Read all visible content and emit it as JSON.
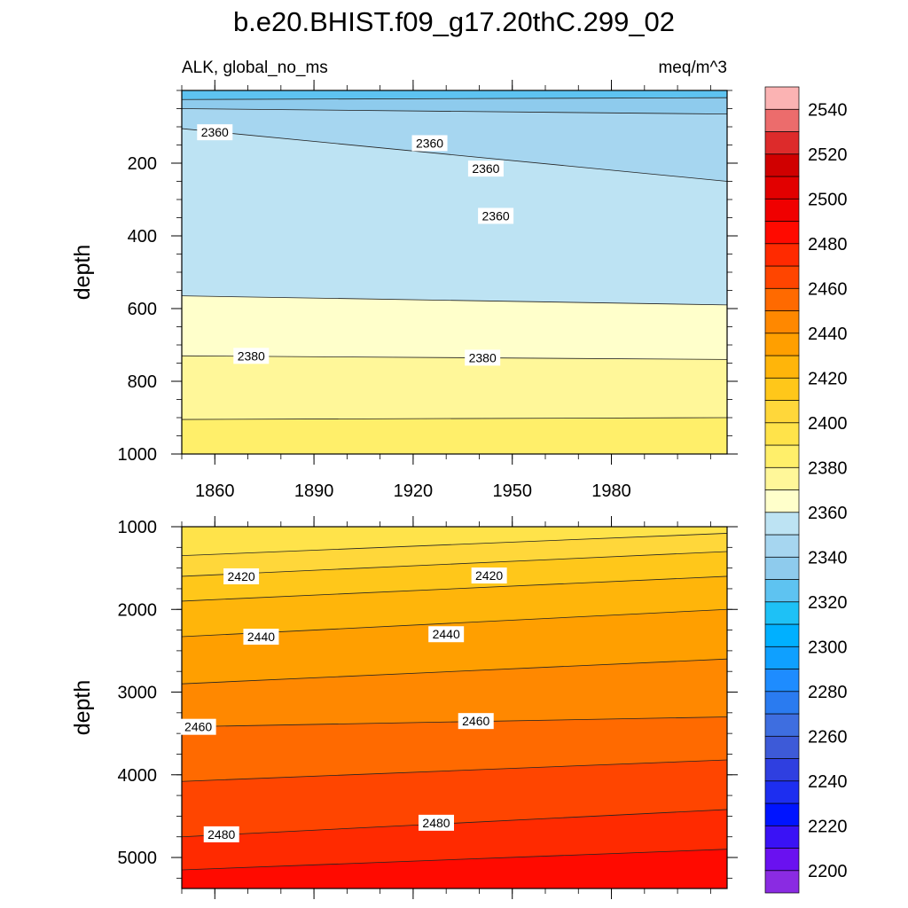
{
  "chart_data": {
    "type": "contour",
    "title": "b.e20.BHIST.f09_g17.20thC.299_02",
    "variable_label": "ALK, global_no_ms",
    "units_label": "meq/m^3",
    "x": {
      "range": [
        1850,
        2015
      ],
      "ticks": [
        1860,
        1890,
        1920,
        1950,
        1980
      ],
      "tick_labels": [
        "1860",
        "1890",
        "1920",
        "1950",
        "1980"
      ]
    },
    "panels": [
      {
        "name": "upper",
        "ylabel": "depth",
        "yrange": [
          0,
          1000
        ],
        "yticks": [
          200,
          400,
          600,
          800,
          1000
        ],
        "ytick_labels": [
          "200",
          "400",
          "600",
          "800",
          "1000"
        ],
        "bands": [
          {
            "level": 2330,
            "color": "#5ec3f1",
            "y0": [
              0,
              0
            ],
            "y1": [
              25,
              20
            ]
          },
          {
            "level": 2340,
            "color": "#8ecbed",
            "y0": [
              25,
              20
            ],
            "y1": [
              50,
              65
            ]
          },
          {
            "level": 2350,
            "color": "#a6d6f0",
            "y0": [
              50,
              65
            ],
            "y1": [
              105,
              250
            ]
          },
          {
            "level": 2360,
            "color": "#bde3f3",
            "y0": [
              105,
              250
            ],
            "y1": [
              565,
              590
            ]
          },
          {
            "level": 2370,
            "color": "#ffffcb",
            "y0": [
              565,
              590
            ],
            "y1": [
              730,
              740
            ]
          },
          {
            "level": 2380,
            "color": "#fff799",
            "y0": [
              730,
              740
            ],
            "y1": [
              905,
              900
            ]
          },
          {
            "level": 2390,
            "color": "#ffef6a",
            "y0": [
              905,
              900
            ],
            "y1": [
              1000,
              1000
            ]
          }
        ],
        "line_labels": [
          {
            "text": "2360",
            "year": 1860,
            "depth": 115
          },
          {
            "text": "2360",
            "year": 1925,
            "depth": 145
          },
          {
            "text": "2360",
            "year": 1942,
            "depth": 215
          },
          {
            "text": "2360",
            "year": 1945,
            "depth": 345
          },
          {
            "text": "2380",
            "year": 1871,
            "depth": 730
          },
          {
            "text": "2380",
            "year": 1941,
            "depth": 735
          }
        ]
      },
      {
        "name": "lower",
        "ylabel": "depth",
        "yrange": [
          1000,
          5375
        ],
        "yticks": [
          1000,
          2000,
          3000,
          4000,
          5000
        ],
        "ytick_labels": [
          "1000",
          "2000",
          "3000",
          "4000",
          "5000"
        ],
        "bands": [
          {
            "level": 2400,
            "color": "#ffe34a",
            "y0": [
              1000,
              1000
            ],
            "y1": [
              1350,
              1080
            ]
          },
          {
            "level": 2410,
            "color": "#ffd73a",
            "y0": [
              1350,
              1080
            ],
            "y1": [
              1600,
              1300
            ]
          },
          {
            "level": 2420,
            "color": "#ffc71a",
            "y0": [
              1600,
              1300
            ],
            "y1": [
              1900,
              1600
            ]
          },
          {
            "level": 2430,
            "color": "#ffb50a",
            "y0": [
              1900,
              1600
            ],
            "y1": [
              2330,
              2000
            ]
          },
          {
            "level": 2440,
            "color": "#ff9f00",
            "y0": [
              2330,
              2000
            ],
            "y1": [
              2900,
              2600
            ]
          },
          {
            "level": 2450,
            "color": "#ff8800",
            "y0": [
              2900,
              2600
            ],
            "y1": [
              3420,
              3300
            ]
          },
          {
            "level": 2460,
            "color": "#ff6a00",
            "y0": [
              3420,
              3300
            ],
            "y1": [
              4080,
              3820
            ]
          },
          {
            "level": 2470,
            "color": "#ff4500",
            "y0": [
              4080,
              3820
            ],
            "y1": [
              4750,
              4420
            ]
          },
          {
            "level": 2480,
            "color": "#ff2a00",
            "y0": [
              4750,
              4420
            ],
            "y1": [
              5150,
              4900
            ]
          },
          {
            "level": 2490,
            "color": "#ff0a00",
            "y0": [
              5150,
              4900
            ],
            "y1": [
              5375,
              5375
            ]
          }
        ],
        "line_labels": [
          {
            "text": "2420",
            "year": 1868,
            "depth": 1600
          },
          {
            "text": "2420",
            "year": 1943,
            "depth": 1590
          },
          {
            "text": "2440",
            "year": 1874,
            "depth": 2330
          },
          {
            "text": "2440",
            "year": 1930,
            "depth": 2300
          },
          {
            "text": "2460",
            "year": 1855,
            "depth": 3420
          },
          {
            "text": "2460",
            "year": 1939,
            "depth": 3350
          },
          {
            "text": "2480",
            "year": 1862,
            "depth": 4720
          },
          {
            "text": "2480",
            "year": 1927,
            "depth": 4580
          }
        ]
      }
    ],
    "colorbar": {
      "colors": [
        "#8a2be2",
        "#6a11f0",
        "#3a12f5",
        "#0014ff",
        "#1d2ef0",
        "#2f3fe0",
        "#3d5ad8",
        "#3e6ee0",
        "#2a7bf0",
        "#1e8cff",
        "#0fa0ff",
        "#00b0ff",
        "#1ec1f6",
        "#5ec3f1",
        "#8ecbed",
        "#a6d6f0",
        "#bde3f3",
        "#ffffcb",
        "#fff799",
        "#ffef6a",
        "#ffe34a",
        "#ffd73a",
        "#ffc71a",
        "#ffb50a",
        "#ff9f00",
        "#ff8800",
        "#ff6a00",
        "#ff4500",
        "#ff2a00",
        "#ff0a00",
        "#f00000",
        "#e20000",
        "#d00000",
        "#dd2b2b",
        "#ec6c6c",
        "#fbb3b3"
      ],
      "labels": [
        "2200",
        "2220",
        "2240",
        "2260",
        "2280",
        "2300",
        "2320",
        "2340",
        "2360",
        "2380",
        "2400",
        "2420",
        "2440",
        "2460",
        "2480",
        "2500",
        "2520",
        "2540"
      ]
    }
  }
}
